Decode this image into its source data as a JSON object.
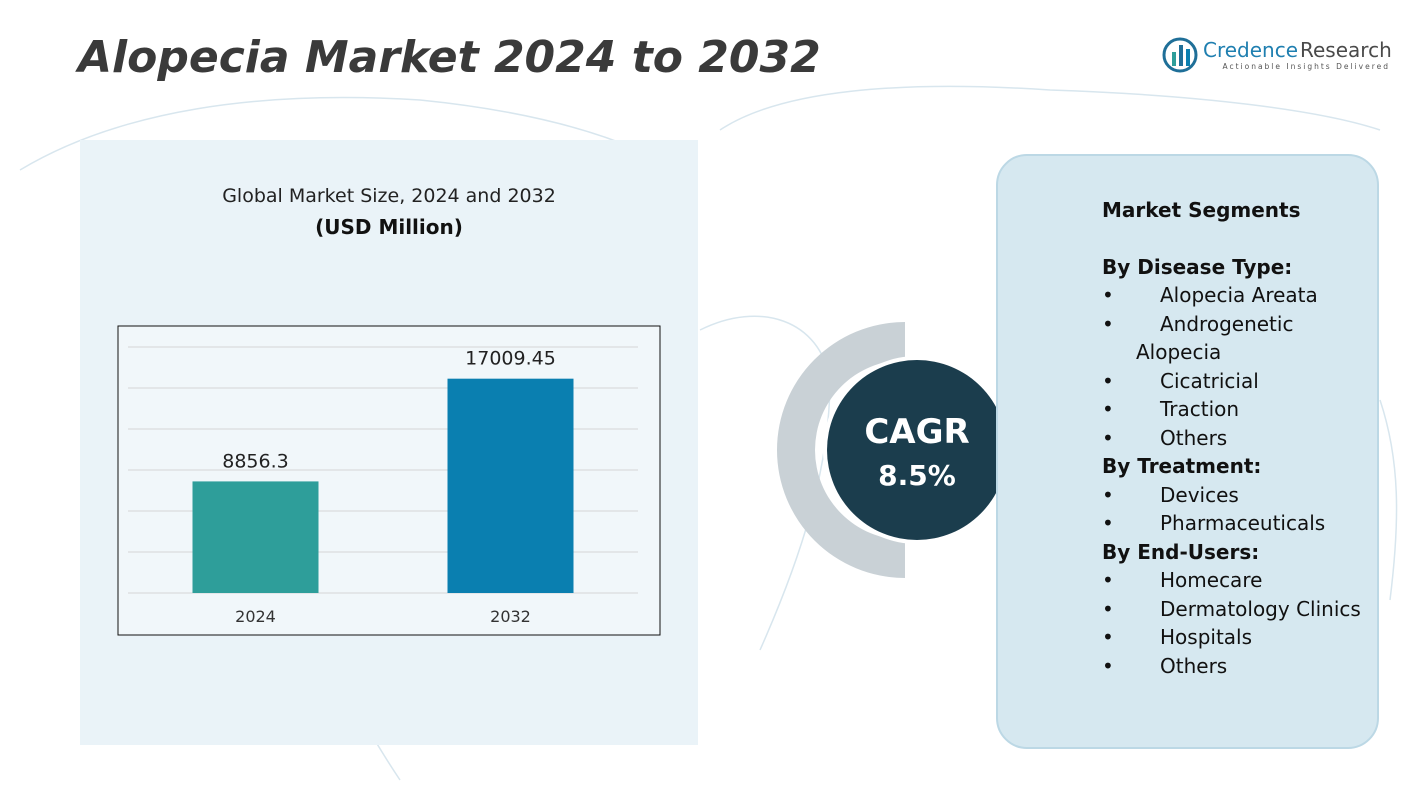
{
  "title": "Alopecia Market 2024 to 2032",
  "logo": {
    "brand": "Credence",
    "brand2": "Research",
    "tagline": "Actionable Insights Delivered"
  },
  "chart_data": {
    "type": "bar",
    "title": "Global Market Size, 2024 and 2032",
    "subtitle": "(USD Million)",
    "categories": [
      "2024",
      "2032"
    ],
    "values": [
      8856.3,
      17009.45
    ],
    "colors": [
      "#2e9e9a",
      "#0a7fb0"
    ],
    "ylim": [
      0,
      20000
    ]
  },
  "cagr": {
    "label": "CAGR",
    "value": "8.5%"
  },
  "segments": {
    "title": "Market Segments",
    "groups": [
      {
        "heading": "By Disease Type:",
        "items": [
          "Alopecia Areata",
          "Androgenetic Alopecia",
          "Cicatricial",
          "Traction",
          "Others"
        ]
      },
      {
        "heading": "By Treatment:",
        "items": [
          "Devices",
          "Pharmaceuticals"
        ]
      },
      {
        "heading": "By End-Users:",
        "items": [
          "Homecare",
          "Dermatology Clinics",
          "Hospitals",
          "Others"
        ]
      }
    ]
  }
}
